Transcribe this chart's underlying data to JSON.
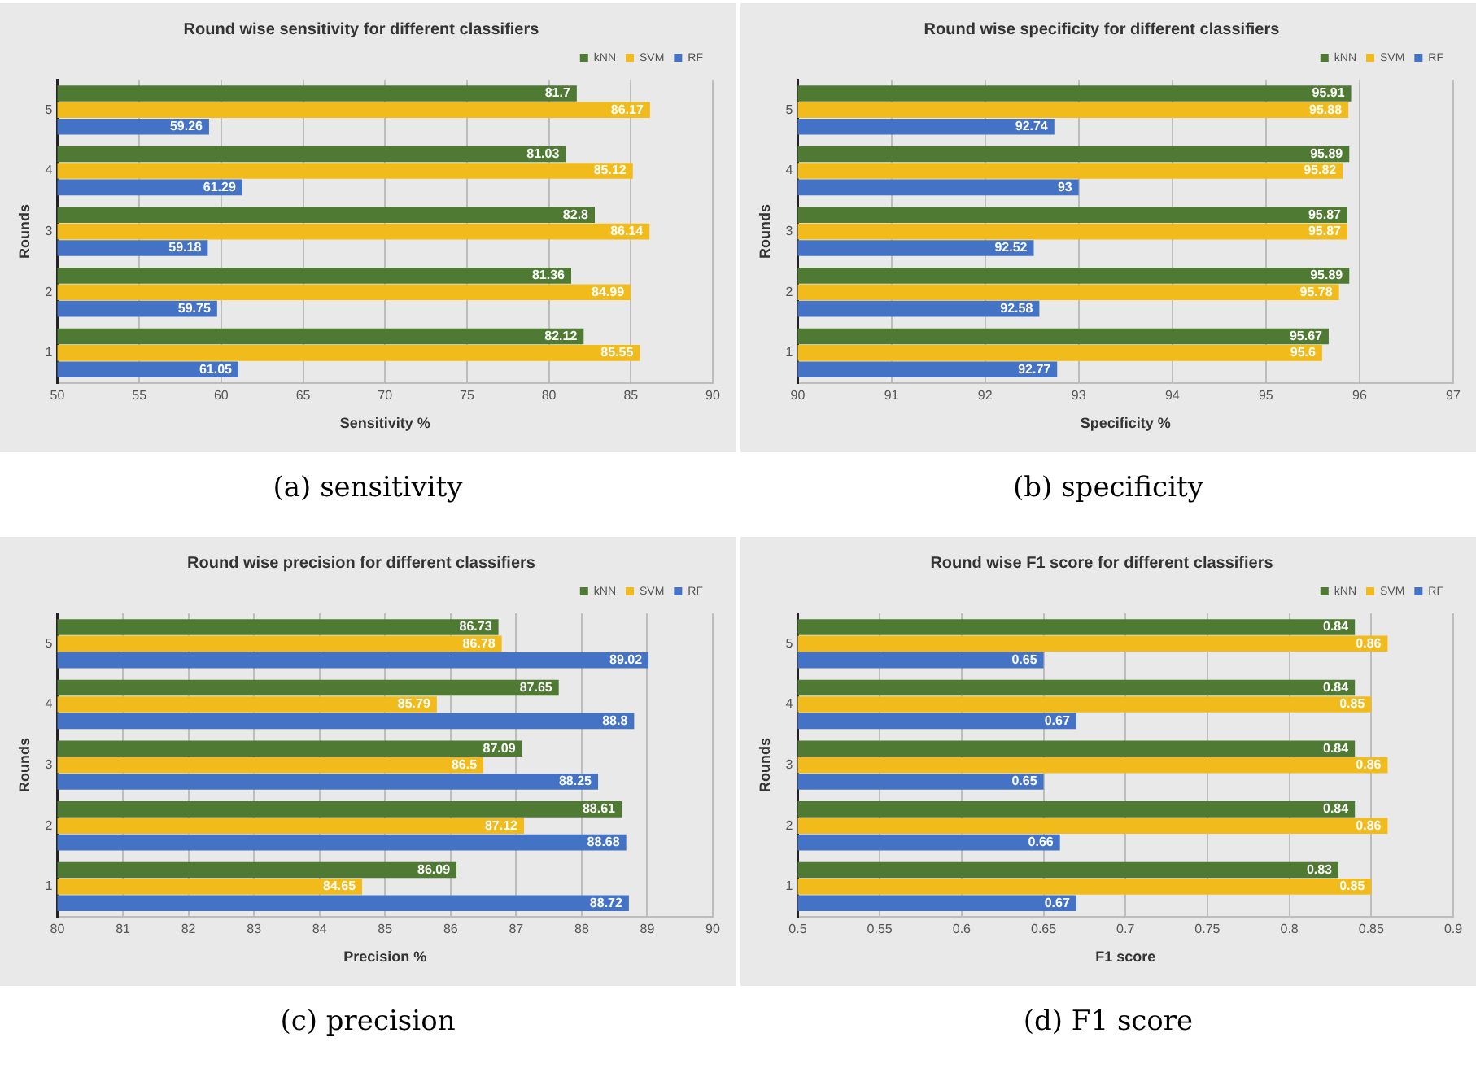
{
  "chart_data": [
    {
      "type": "bar",
      "orientation": "horizontal",
      "title": "Round wise sensitivity for different classifiers",
      "xlabel": "Sensitivity %",
      "ylabel": "Rounds",
      "categories": [
        "5",
        "4",
        "3",
        "2",
        "1"
      ],
      "xlim": [
        50,
        90
      ],
      "xticks": [
        50,
        55,
        60,
        65,
        70,
        75,
        80,
        85,
        90
      ],
      "grid": "x",
      "legend": "top right",
      "data_labels": true,
      "annotations": [
        "(a) sensitivity"
      ],
      "series": [
        {
          "name": "kNN",
          "color": "#4f7a34",
          "values": [
            81.7,
            81.03,
            82.8,
            81.36,
            82.12
          ]
        },
        {
          "name": "SVM",
          "color": "#f2bb1c",
          "values": [
            86.17,
            85.12,
            86.14,
            84.99,
            85.55
          ]
        },
        {
          "name": "RF",
          "color": "#4472c4",
          "values": [
            59.26,
            61.29,
            59.18,
            59.75,
            61.05
          ]
        }
      ]
    },
    {
      "type": "bar",
      "orientation": "horizontal",
      "title": "Round wise specificity for different classifiers",
      "xlabel": "Specificity %",
      "ylabel": "Rounds",
      "categories": [
        "5",
        "4",
        "3",
        "2",
        "1"
      ],
      "xlim": [
        90,
        97
      ],
      "xticks": [
        90,
        91,
        92,
        93,
        94,
        95,
        96,
        97
      ],
      "grid": "x",
      "legend": "top right",
      "data_labels": true,
      "annotations": [
        "(b) specificity"
      ],
      "series": [
        {
          "name": "kNN",
          "color": "#4f7a34",
          "values": [
            95.91,
            95.89,
            95.87,
            95.89,
            95.67
          ]
        },
        {
          "name": "SVM",
          "color": "#f2bb1c",
          "values": [
            95.88,
            95.82,
            95.87,
            95.78,
            95.6
          ]
        },
        {
          "name": "RF",
          "color": "#4472c4",
          "values": [
            92.74,
            93,
            92.52,
            92.58,
            92.77
          ]
        }
      ]
    },
    {
      "type": "bar",
      "orientation": "horizontal",
      "title": "Round wise precision for different classifiers",
      "xlabel": "Precision %",
      "ylabel": "Rounds",
      "categories": [
        "5",
        "4",
        "3",
        "2",
        "1"
      ],
      "xlim": [
        80,
        90
      ],
      "xticks": [
        80,
        81,
        82,
        83,
        84,
        85,
        86,
        87,
        88,
        89,
        90
      ],
      "grid": "x",
      "legend": "top right",
      "data_labels": true,
      "annotations": [
        "(c) precision"
      ],
      "series": [
        {
          "name": "kNN",
          "color": "#4f7a34",
          "values": [
            86.73,
            87.65,
            87.09,
            88.61,
            86.09
          ]
        },
        {
          "name": "SVM",
          "color": "#f2bb1c",
          "values": [
            86.78,
            85.79,
            86.5,
            87.12,
            84.65
          ]
        },
        {
          "name": "RF",
          "color": "#4472c4",
          "values": [
            89.02,
            88.8,
            88.25,
            88.68,
            88.72
          ]
        }
      ]
    },
    {
      "type": "bar",
      "orientation": "horizontal",
      "title": "Round wise F1 score for different classifiers",
      "xlabel": "F1 score",
      "ylabel": "Rounds",
      "categories": [
        "5",
        "4",
        "3",
        "2",
        "1"
      ],
      "xlim": [
        0.5,
        0.9
      ],
      "xticks": [
        0.5,
        0.55,
        0.6,
        0.65,
        0.7,
        0.75,
        0.8,
        0.85,
        0.9
      ],
      "grid": "x",
      "legend": "top right",
      "data_labels": true,
      "annotations": [
        "(d) F1 score"
      ],
      "series": [
        {
          "name": "kNN",
          "color": "#4f7a34",
          "values": [
            0.84,
            0.84,
            0.84,
            0.84,
            0.83
          ]
        },
        {
          "name": "SVM",
          "color": "#f2bb1c",
          "values": [
            0.86,
            0.85,
            0.86,
            0.86,
            0.85
          ]
        },
        {
          "name": "RF",
          "color": "#4472c4",
          "values": [
            0.65,
            0.67,
            0.65,
            0.66,
            0.67
          ]
        }
      ]
    }
  ]
}
